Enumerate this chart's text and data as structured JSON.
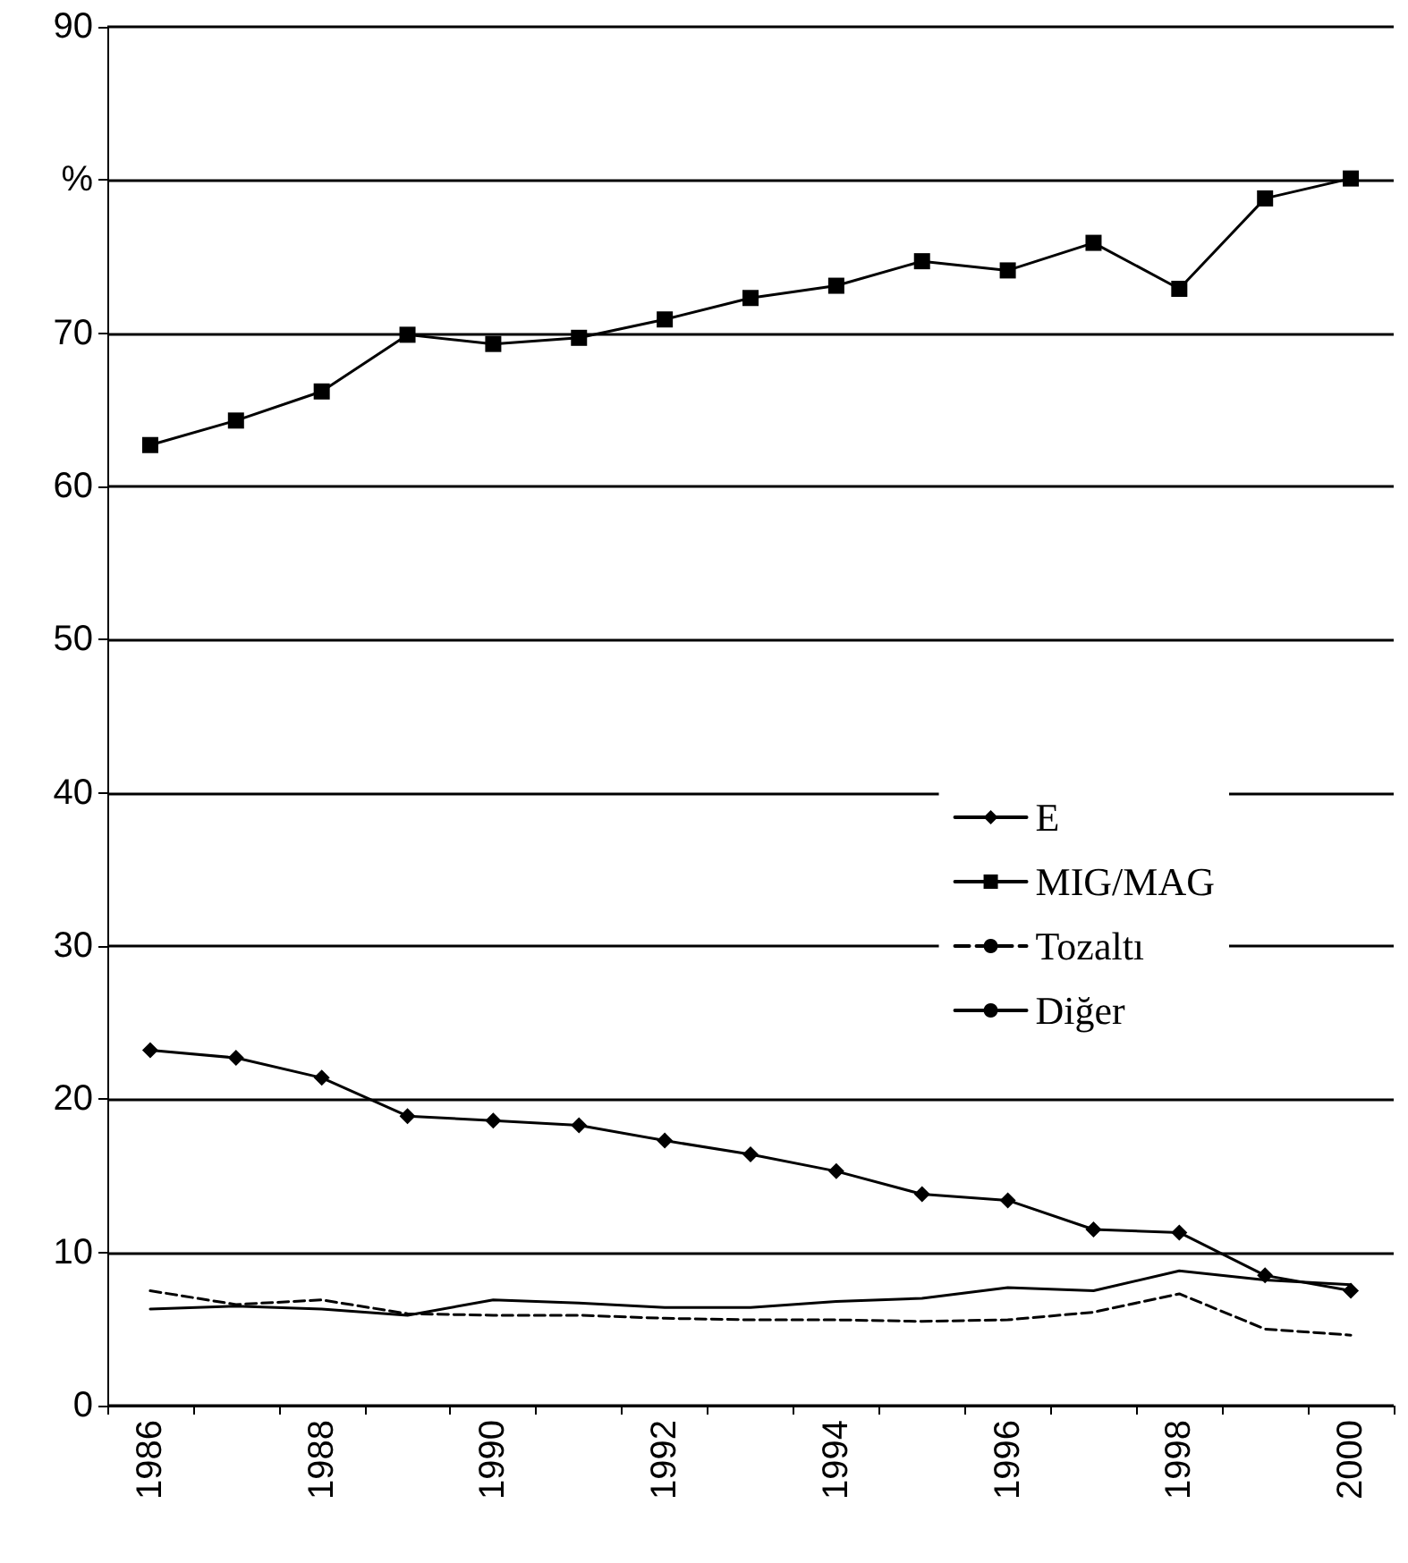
{
  "chart_data": {
    "type": "line",
    "categories": [
      "1986",
      null,
      "1988",
      null,
      "1990",
      null,
      "1992",
      null,
      "1994",
      null,
      "1996",
      null,
      "1998",
      null,
      "2000"
    ],
    "ylim": [
      0,
      90
    ],
    "yticks": [
      0,
      10,
      20,
      30,
      40,
      50,
      60,
      70,
      {
        "value": 80,
        "label": "%"
      },
      90
    ],
    "grid": "y",
    "legend": "right",
    "series": [
      {
        "name": "E",
        "color": "#000000",
        "marker": "diamond",
        "line_style": "solid",
        "values": [
          23.2,
          22.7,
          21.4,
          18.9,
          18.6,
          18.3,
          17.3,
          16.4,
          15.3,
          13.8,
          13.4,
          11.5,
          11.3,
          8.5,
          7.5
        ]
      },
      {
        "name": "MIG/MAG",
        "color": "#000000",
        "marker": "square",
        "line_style": "solid",
        "values": [
          62.7,
          64.3,
          66.2,
          69.9,
          69.3,
          69.7,
          70.9,
          72.3,
          73.1,
          74.7,
          74.1,
          75.9,
          72.9,
          78.8,
          80.1
        ]
      },
      {
        "name": "Tozaltı",
        "color": "#000000",
        "marker": "none",
        "line_style": "dashed",
        "values": [
          7.5,
          6.6,
          6.9,
          6.0,
          5.9,
          5.9,
          5.7,
          5.6,
          5.6,
          5.5,
          5.6,
          6.1,
          7.3,
          5.0,
          4.6
        ]
      },
      {
        "name": "Diğer",
        "color": "#000000",
        "marker": "none",
        "line_style": "solid",
        "values": [
          6.3,
          6.5,
          6.3,
          5.9,
          6.9,
          6.7,
          6.4,
          6.4,
          6.8,
          7.0,
          7.7,
          7.5,
          8.8,
          8.2,
          7.9
        ]
      }
    ]
  }
}
